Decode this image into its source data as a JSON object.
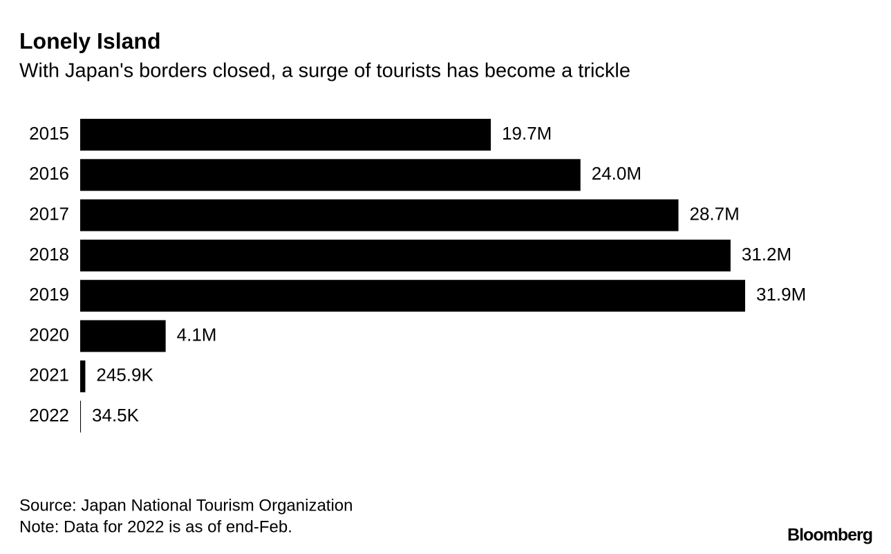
{
  "chart_data": {
    "type": "bar",
    "orientation": "horizontal",
    "title": "Lonely Island",
    "subtitle": "With Japan's borders closed, a surge of tourists has become a trickle",
    "categories": [
      "2015",
      "2016",
      "2017",
      "2018",
      "2019",
      "2020",
      "2021",
      "2022"
    ],
    "values": [
      19700000,
      24000000,
      28700000,
      31200000,
      31900000,
      4100000,
      245900,
      34500
    ],
    "value_labels": [
      "19.7M",
      "24.0M",
      "28.7M",
      "31.2M",
      "31.9M",
      "4.1M",
      "245.9K",
      "34.5K"
    ],
    "color": "#000000",
    "source": "Source: Japan National Tourism Organization",
    "note": "Note: Data for 2022 is as of end-Feb.",
    "brand": "Bloomberg"
  }
}
